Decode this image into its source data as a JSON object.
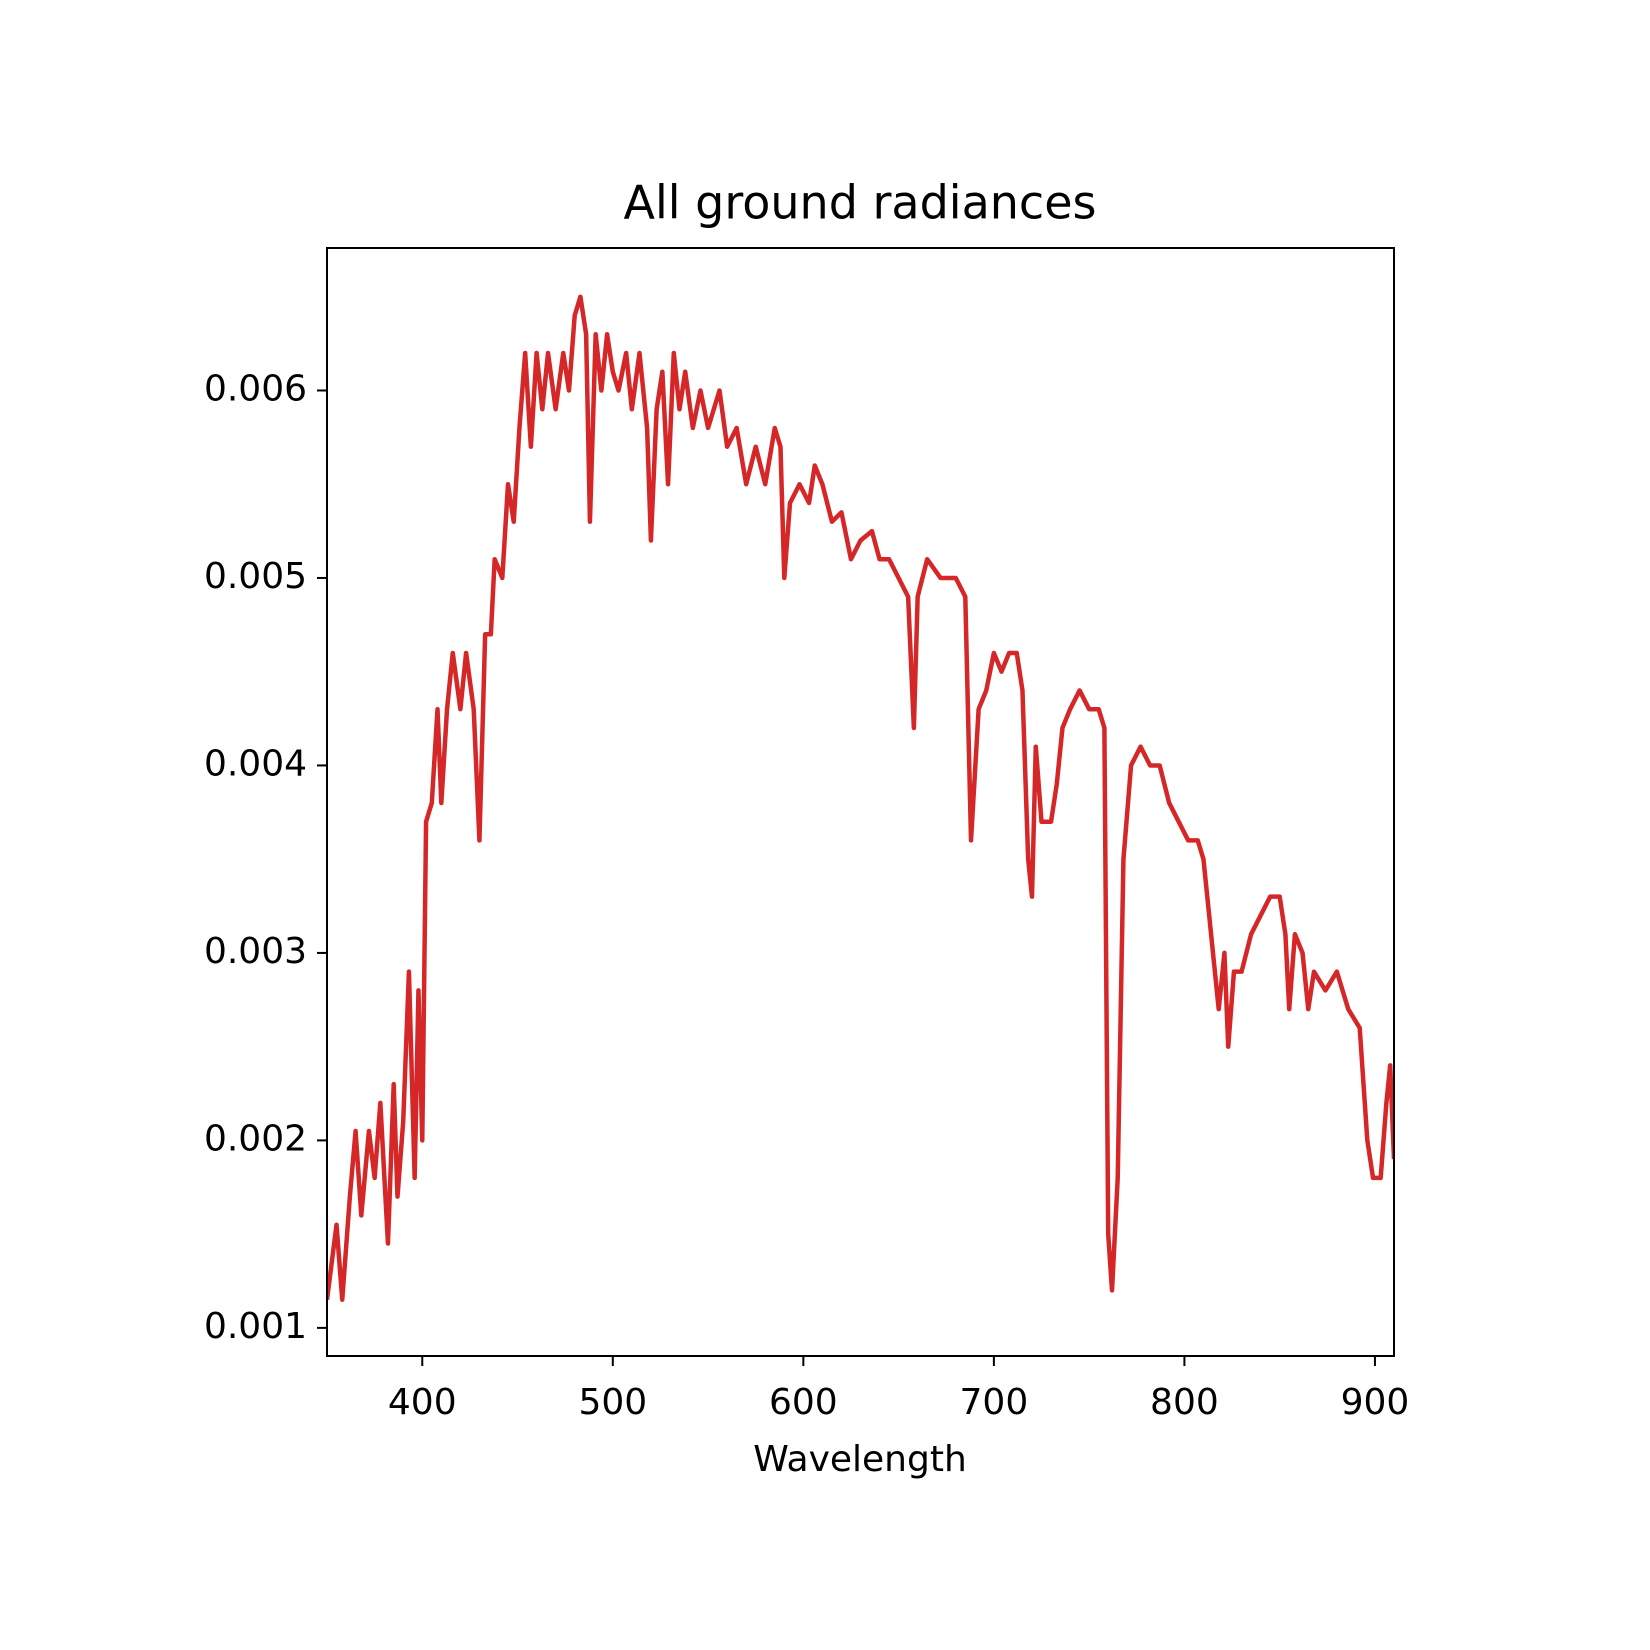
{
  "chart_data": {
    "type": "line",
    "title": "All ground radiances",
    "xlabel": "Wavelength",
    "x": [
      350,
      355,
      358,
      362,
      365,
      368,
      372,
      375,
      378,
      382,
      385,
      387,
      390,
      393,
      396,
      398,
      400,
      402,
      405,
      408,
      410,
      413,
      416,
      420,
      423,
      427,
      430,
      433,
      436,
      438,
      442,
      445,
      448,
      451,
      454,
      457,
      460,
      463,
      466,
      470,
      474,
      477,
      480,
      483,
      486,
      488,
      491,
      494,
      497,
      500,
      503,
      507,
      510,
      514,
      518,
      520,
      523,
      526,
      529,
      532,
      535,
      538,
      542,
      546,
      550,
      556,
      560,
      565,
      570,
      575,
      580,
      585,
      588,
      590,
      593,
      598,
      603,
      606,
      610,
      615,
      620,
      625,
      630,
      636,
      640,
      645,
      650,
      655,
      658,
      660,
      665,
      672,
      680,
      685,
      688,
      692,
      696,
      700,
      704,
      708,
      712,
      715,
      718,
      720,
      722,
      725,
      730,
      733,
      736,
      740,
      745,
      750,
      755,
      758,
      760,
      762,
      765,
      768,
      772,
      777,
      782,
      787,
      792,
      797,
      802,
      807,
      810,
      815,
      818,
      821,
      823,
      826,
      830,
      835,
      840,
      845,
      850,
      853,
      855,
      858,
      862,
      865,
      868,
      874,
      880,
      886,
      892,
      896,
      899,
      903,
      906,
      908,
      910
    ],
    "series": [
      {
        "color": "#d62728",
        "values": [
          0.00115,
          0.00155,
          0.00115,
          0.0017,
          0.00205,
          0.0016,
          0.00205,
          0.0018,
          0.0022,
          0.00145,
          0.0023,
          0.0017,
          0.0021,
          0.0029,
          0.0018,
          0.0028,
          0.002,
          0.0037,
          0.0038,
          0.0043,
          0.0038,
          0.0043,
          0.0046,
          0.0043,
          0.0046,
          0.0043,
          0.0036,
          0.0047,
          0.0047,
          0.0051,
          0.005,
          0.0055,
          0.0053,
          0.0058,
          0.0062,
          0.0057,
          0.0062,
          0.0059,
          0.0062,
          0.0059,
          0.0062,
          0.006,
          0.0064,
          0.0065,
          0.0063,
          0.0053,
          0.0063,
          0.006,
          0.0063,
          0.0061,
          0.006,
          0.0062,
          0.0059,
          0.0062,
          0.0058,
          0.0052,
          0.0059,
          0.0061,
          0.0055,
          0.0062,
          0.0059,
          0.0061,
          0.0058,
          0.006,
          0.0058,
          0.006,
          0.0057,
          0.0058,
          0.0055,
          0.0057,
          0.0055,
          0.0058,
          0.0057,
          0.005,
          0.0054,
          0.0055,
          0.0054,
          0.0056,
          0.0055,
          0.0053,
          0.00535,
          0.0051,
          0.0052,
          0.00525,
          0.0051,
          0.0051,
          0.005,
          0.0049,
          0.0042,
          0.0049,
          0.0051,
          0.005,
          0.005,
          0.0049,
          0.0036,
          0.0043,
          0.0044,
          0.0046,
          0.0045,
          0.0046,
          0.0046,
          0.0044,
          0.0035,
          0.0033,
          0.0041,
          0.0037,
          0.0037,
          0.0039,
          0.0042,
          0.0043,
          0.0044,
          0.0043,
          0.0043,
          0.0042,
          0.0015,
          0.0012,
          0.0018,
          0.0035,
          0.004,
          0.0041,
          0.004,
          0.004,
          0.0038,
          0.0037,
          0.0036,
          0.0036,
          0.0035,
          0.003,
          0.0027,
          0.003,
          0.0025,
          0.0029,
          0.0029,
          0.0031,
          0.0032,
          0.0033,
          0.0033,
          0.0031,
          0.0027,
          0.0031,
          0.003,
          0.0027,
          0.0029,
          0.0028,
          0.0029,
          0.0027,
          0.0026,
          0.002,
          0.0018,
          0.0018,
          0.0022,
          0.0024,
          0.0019
        ]
      }
    ],
    "xlim": [
      350,
      910
    ],
    "xticks": [
      400,
      500,
      600,
      700,
      800,
      900
    ],
    "ylim": [
      0.00085,
      0.00676
    ],
    "yticks": [
      0.001,
      0.002,
      0.003,
      0.004,
      0.005,
      0.006
    ]
  }
}
